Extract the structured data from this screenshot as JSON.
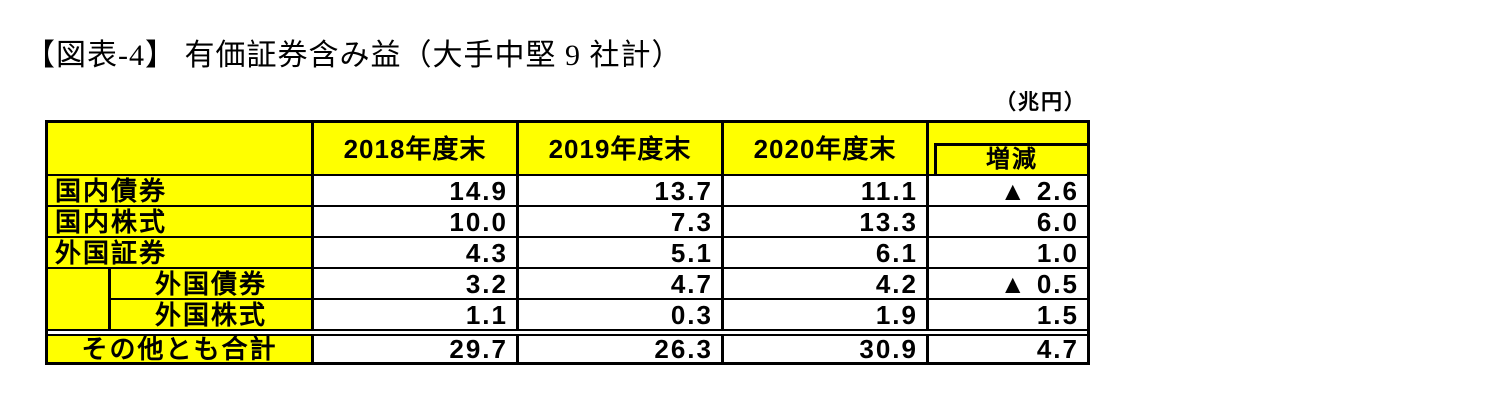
{
  "title": "【図表-4】 有価証券含み益（大手中堅 9 社計）",
  "unit_label": "（兆円）",
  "table": {
    "header": {
      "year_columns": [
        "2018年度末",
        "2019年度末",
        "2020年度末"
      ],
      "change_label": "増減"
    },
    "rows": [
      {
        "label": "国内債券",
        "indent": false,
        "total": false,
        "values": [
          "14.9",
          "13.7",
          "11.1",
          "▲ 2.6"
        ]
      },
      {
        "label": "国内株式",
        "indent": false,
        "total": false,
        "values": [
          "10.0",
          "7.3",
          "13.3",
          "6.0"
        ]
      },
      {
        "label": "外国証券",
        "indent": false,
        "total": false,
        "values": [
          "4.3",
          "5.1",
          "6.1",
          "1.0"
        ]
      },
      {
        "label": "外国債券",
        "indent": true,
        "total": false,
        "values": [
          "3.2",
          "4.7",
          "4.2",
          "▲ 0.5"
        ]
      },
      {
        "label": "外国株式",
        "indent": true,
        "total": false,
        "values": [
          "1.1",
          "0.3",
          "1.9",
          "1.5"
        ]
      },
      {
        "label": "その他とも合計",
        "indent": false,
        "total": true,
        "values": [
          "29.7",
          "26.3",
          "30.9",
          "4.7"
        ]
      }
    ],
    "colors": {
      "header_bg": "#FFFF00",
      "cell_bg": "#FFFFFF",
      "border": "#000000",
      "text": "#000000"
    },
    "negative_marker": "▲"
  },
  "chart_data": {
    "type": "table",
    "title": "有価証券含み益（大手中堅9社計）",
    "unit": "兆円",
    "categories": [
      "2018年度末",
      "2019年度末",
      "2020年度末",
      "増減"
    ],
    "series": [
      {
        "name": "国内債券",
        "values": [
          14.9,
          13.7,
          11.1,
          -2.6
        ]
      },
      {
        "name": "国内株式",
        "values": [
          10.0,
          7.3,
          13.3,
          6.0
        ]
      },
      {
        "name": "外国証券",
        "values": [
          4.3,
          5.1,
          6.1,
          1.0
        ]
      },
      {
        "name": "外国債券",
        "values": [
          3.2,
          4.7,
          4.2,
          -0.5
        ]
      },
      {
        "name": "外国株式",
        "values": [
          1.1,
          0.3,
          1.9,
          1.5
        ]
      },
      {
        "name": "その他とも合計",
        "values": [
          29.7,
          26.3,
          30.9,
          4.7
        ]
      }
    ]
  }
}
